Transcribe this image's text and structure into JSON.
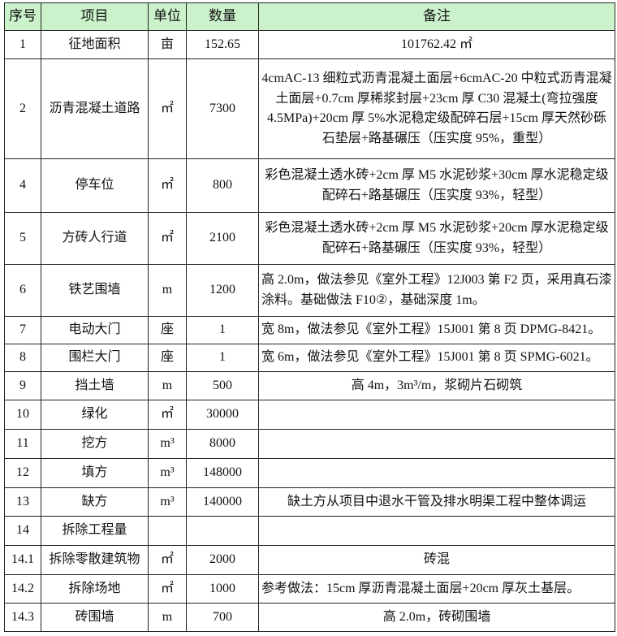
{
  "table": {
    "header_bg": "#ccf2cc",
    "headers": [
      "序号",
      "项目",
      "单位",
      "数量",
      "备注"
    ],
    "rows": [
      {
        "no": "1",
        "item": "征地面积",
        "unit": "亩",
        "qty": "152.65",
        "note": "101762.42 ㎡"
      },
      {
        "no": "2",
        "item": "沥青混凝土道路",
        "unit": "㎡",
        "qty": "7300",
        "note": "4cmAC-13 细粒式沥青混凝土面层+6cmAC-20 中粒式沥青混凝土面层+0.7cm 厚稀浆封层+23cm 厚 C30 混凝土(弯拉强度 4.5MPa)+20cm 厚 5%水泥稳定级配碎石层+15cm 厚天然砂砾石垫层+路基碾压（压实度 95%，重型）"
      },
      {
        "no": "4",
        "item": "停车位",
        "unit": "㎡",
        "qty": "800",
        "note": "彩色混凝土透水砖+2cm 厚 M5 水泥砂浆+30cm 厚水泥稳定级配碎石+路基碾压（压实度 93%，轻型）"
      },
      {
        "no": "5",
        "item": "方砖人行道",
        "unit": "㎡",
        "qty": "2100",
        "note": "彩色混凝土透水砖+2cm 厚 M5 水泥砂浆+20cm 厚水泥稳定级配碎石+路基碾压（压实度 93%，轻型）"
      },
      {
        "no": "6",
        "item": "铁艺围墙",
        "unit": "m",
        "qty": "1200",
        "note": "高 2.0m，做法参见《室外工程》12J003 第 F2 页，采用真石漆涂料。基础做法 F10②，基础深度 1m。"
      },
      {
        "no": "7",
        "item": "电动大门",
        "unit": "座",
        "qty": "1",
        "note": "宽 8m，做法参见《室外工程》15J001 第 8 页 DPMG-8421。"
      },
      {
        "no": "8",
        "item": "围栏大门",
        "unit": "座",
        "qty": "1",
        "note": "宽 6m，做法参见《室外工程》15J001 第 8 页 SPMG-6021。"
      },
      {
        "no": "9",
        "item": "挡土墙",
        "unit": "m",
        "qty": "500",
        "note": "高 4m，3m³/m，浆砌片石砌筑"
      },
      {
        "no": "10",
        "item": "绿化",
        "unit": "㎡",
        "qty": "30000",
        "note": ""
      },
      {
        "no": "11",
        "item": "挖方",
        "unit": "m³",
        "qty": "8000",
        "note": ""
      },
      {
        "no": "12",
        "item": "填方",
        "unit": "m³",
        "qty": "148000",
        "note": ""
      },
      {
        "no": "13",
        "item": "缺方",
        "unit": "m³",
        "qty": "140000",
        "note": "缺土方从项目中退水干管及排水明渠工程中整体调运"
      },
      {
        "no": "14",
        "item": "拆除工程量",
        "unit": "",
        "qty": "",
        "note": ""
      },
      {
        "no": "14.1",
        "item": "拆除零散建筑物",
        "unit": "㎡",
        "qty": "2000",
        "note": "砖混"
      },
      {
        "no": "14.2",
        "item": "拆除场地",
        "unit": "㎡",
        "qty": "1000",
        "note": "参考做法：15cm 厚沥青混凝土面层+20cm 厚灰土基层。"
      },
      {
        "no": "14.3",
        "item": "砖围墙",
        "unit": "m",
        "qty": "700",
        "note": "高 2.0m，砖砌围墙"
      }
    ]
  }
}
